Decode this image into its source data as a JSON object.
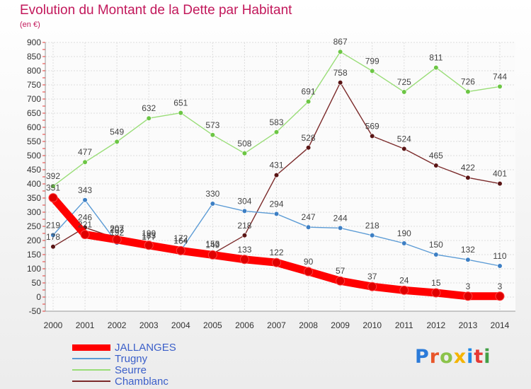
{
  "header": {
    "title": "Evolution du Montant de la Dette par Habitant",
    "subtitle": "(en €)"
  },
  "logo": {
    "text": "Proxiti",
    "colors": [
      "#2b7bd9",
      "#e8562a",
      "#8bc34a",
      "#f4b400",
      "#1e88e5",
      "#e53935",
      "#43a047"
    ]
  },
  "chart_data": {
    "type": "line",
    "title": "Evolution du Montant de la Dette par Habitant",
    "subtitle": "(en €)",
    "x": [
      "2000",
      "2001",
      "2002",
      "2003",
      "2004",
      "2005",
      "2006",
      "2007",
      "2008",
      "2009",
      "2010",
      "2011",
      "2012",
      "2013",
      "2014"
    ],
    "ylim": [
      -50,
      900
    ],
    "yticks": [
      -50,
      0,
      50,
      100,
      150,
      200,
      250,
      300,
      350,
      400,
      450,
      500,
      550,
      600,
      650,
      700,
      750,
      800,
      850,
      900
    ],
    "grid": true,
    "legend_position": "bottom-left",
    "series": [
      {
        "name": "JALLANGES",
        "color": "#ff0000",
        "values": [
          351,
          221,
          203,
          183,
          164,
          149,
          133,
          122,
          90,
          57,
          37,
          24,
          15,
          3,
          3
        ]
      },
      {
        "name": "Trugny",
        "color": "#5b9bd5",
        "values": [
          219,
          343,
          192,
          177,
          164,
          330,
          304,
          294,
          247,
          244,
          218,
          190,
          150,
          132,
          110
        ]
      },
      {
        "name": "Seurre",
        "color": "#99dd77",
        "values": [
          392,
          477,
          549,
          632,
          651,
          573,
          508,
          583,
          691,
          867,
          799,
          725,
          811,
          726,
          744
        ]
      },
      {
        "name": "Chamblanc",
        "color": "#7b2a2a",
        "values": [
          178,
          246,
          207,
          190,
          172,
          153,
          218,
          431,
          528,
          758,
          569,
          524,
          465,
          422,
          401
        ]
      }
    ]
  }
}
